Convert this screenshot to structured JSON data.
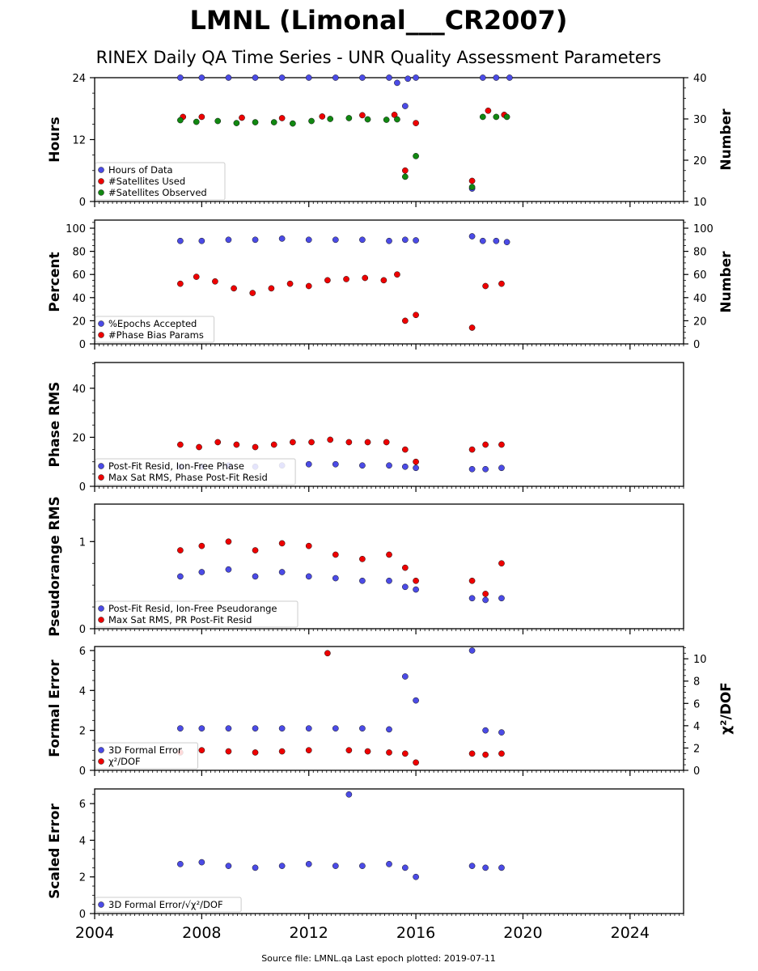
{
  "title": "LMNL (Limonal___CR2007)",
  "subtitle": "RINEX Daily QA Time Series - UNR Quality Assessment Parameters",
  "footer": "Source file: LMNL.qa Last epoch plotted: 2019-07-11",
  "colors": {
    "blue": "#4b4be6",
    "red": "#ee0000",
    "green": "#118811"
  },
  "x_axis": {
    "range": [
      2004,
      2026
    ],
    "ticks": [
      2004,
      2008,
      2012,
      2016,
      2020,
      2024
    ],
    "tick_labels": [
      "2004",
      "2008",
      "2012",
      "2016",
      "2020",
      "2024"
    ]
  },
  "chart_data": [
    {
      "type": "scatter",
      "ylabel": "Hours",
      "ylim": [
        0,
        24
      ],
      "yticks": [
        0,
        12,
        24
      ],
      "y2label": "Number",
      "y2lim": [
        10,
        40
      ],
      "y2ticks": [
        10,
        20,
        30,
        40
      ],
      "legend": "bottom-left",
      "series": [
        {
          "name": "Hours of Data",
          "color": "blue",
          "axis": "left",
          "x": [
            2007.2,
            2008.0,
            2009.0,
            2010.0,
            2011.0,
            2012.0,
            2013.0,
            2014.0,
            2015.0,
            2015.3,
            2015.6,
            2015.7,
            2016.0,
            2018.1,
            2018.5,
            2019.0,
            2019.5
          ],
          "y": [
            24,
            24,
            24,
            24,
            24,
            24,
            24,
            24,
            24,
            23,
            18.5,
            23.8,
            24,
            2.5,
            24,
            24,
            24
          ]
        },
        {
          "name": "#Satellites Used",
          "color": "red",
          "axis": "right",
          "x": [
            2007.3,
            2008.0,
            2009.5,
            2011.0,
            2012.5,
            2014.0,
            2015.2,
            2015.6,
            2016.0,
            2018.1,
            2018.7,
            2019.3
          ],
          "y": [
            30.5,
            30.5,
            30.3,
            30.2,
            30.6,
            30.9,
            31,
            17.5,
            29,
            15,
            32,
            31
          ]
        },
        {
          "name": "#Satellites Observed",
          "color": "green",
          "axis": "right",
          "x": [
            2007.2,
            2007.8,
            2008.6,
            2009.3,
            2010.0,
            2010.7,
            2011.4,
            2012.1,
            2012.8,
            2013.5,
            2014.2,
            2014.9,
            2015.3,
            2015.6,
            2016.0,
            2018.1,
            2018.5,
            2019.0,
            2019.4
          ],
          "y": [
            29.7,
            29.3,
            29.5,
            29.0,
            29.2,
            29.2,
            28.9,
            29.5,
            30.0,
            30.2,
            29.9,
            29.8,
            29.9,
            16,
            21,
            13.5,
            30.5,
            30.5,
            30.5
          ]
        }
      ]
    },
    {
      "type": "scatter",
      "ylabel": "Percent",
      "ylim": [
        0,
        107
      ],
      "yticks": [
        0,
        20,
        40,
        60,
        80,
        100
      ],
      "y2label": "Number",
      "y2lim": [
        0,
        107
      ],
      "y2ticks": [
        0,
        20,
        40,
        60,
        80,
        100
      ],
      "legend": "bottom-left",
      "series": [
        {
          "name": "%Epochs Accepted",
          "color": "blue",
          "axis": "left",
          "x": [
            2007.2,
            2008.0,
            2009.0,
            2010.0,
            2011.0,
            2012.0,
            2013.0,
            2014.0,
            2015.0,
            2015.6,
            2016.0,
            2018.1,
            2018.5,
            2019.0,
            2019.4
          ],
          "y": [
            89,
            89,
            90,
            90,
            91,
            90,
            90,
            90,
            89,
            90,
            89.5,
            93,
            89,
            89,
            88
          ]
        },
        {
          "name": "#Phase Bias Params",
          "color": "red",
          "axis": "right",
          "x": [
            2007.2,
            2007.8,
            2008.5,
            2009.2,
            2009.9,
            2010.6,
            2011.3,
            2012.0,
            2012.7,
            2013.4,
            2014.1,
            2014.8,
            2015.3,
            2015.6,
            2016.0,
            2018.1,
            2018.6,
            2019.2
          ],
          "y": [
            52,
            58,
            54,
            48,
            44,
            48,
            52,
            50,
            55,
            56,
            57,
            55,
            60,
            20,
            25,
            14,
            50,
            52
          ]
        }
      ]
    },
    {
      "type": "scatter",
      "ylabel": "Phase RMS",
      "ylim": [
        0,
        50.5
      ],
      "yticks": [
        0,
        20,
        40
      ],
      "legend": "bottom-left",
      "series": [
        {
          "name": "Post-Fit Resid, Ion-Free Phase",
          "color": "blue",
          "axis": "left",
          "x": [
            2007.2,
            2008.0,
            2009.0,
            2010.0,
            2011.0,
            2012.0,
            2013.0,
            2014.0,
            2015.0,
            2015.6,
            2016.0,
            2018.1,
            2018.6,
            2019.2
          ],
          "y": [
            8,
            8,
            8.5,
            8,
            8.5,
            9,
            9,
            8.5,
            8.5,
            8,
            7.5,
            7,
            7,
            7.5
          ]
        },
        {
          "name": "Max Sat RMS, Phase Post-Fit Resid",
          "color": "red",
          "axis": "left",
          "x": [
            2007.2,
            2007.9,
            2008.6,
            2009.3,
            2010.0,
            2010.7,
            2011.4,
            2012.1,
            2012.8,
            2013.5,
            2014.2,
            2014.9,
            2015.6,
            2016.0,
            2018.1,
            2018.6,
            2019.2
          ],
          "y": [
            17,
            16,
            18,
            17,
            16,
            17,
            18,
            18,
            19,
            18,
            18,
            18,
            15,
            10,
            15,
            17,
            17
          ]
        }
      ]
    },
    {
      "type": "scatter",
      "ylabel": "Pseudorange RMS",
      "ylim": [
        0,
        1.43
      ],
      "yticks": [
        0,
        1
      ],
      "legend": "bottom-left",
      "series": [
        {
          "name": "Post-Fit Resid, Ion-Free Pseudorange",
          "color": "blue",
          "axis": "left",
          "x": [
            2007.2,
            2008.0,
            2009.0,
            2010.0,
            2011.0,
            2012.0,
            2013.0,
            2014.0,
            2015.0,
            2015.6,
            2016.0,
            2018.1,
            2018.6,
            2019.2
          ],
          "y": [
            0.6,
            0.65,
            0.68,
            0.6,
            0.65,
            0.6,
            0.58,
            0.55,
            0.55,
            0.48,
            0.45,
            0.35,
            0.33,
            0.35
          ]
        },
        {
          "name": "Max Sat RMS, PR Post-Fit Resid",
          "color": "red",
          "axis": "left",
          "x": [
            2007.2,
            2008.0,
            2009.0,
            2010.0,
            2011.0,
            2012.0,
            2013.0,
            2014.0,
            2015.0,
            2015.6,
            2016.0,
            2018.1,
            2018.6,
            2019.2
          ],
          "y": [
            0.9,
            0.95,
            1.0,
            0.9,
            0.98,
            0.95,
            0.85,
            0.8,
            0.85,
            0.7,
            0.55,
            0.55,
            0.4,
            0.75
          ]
        }
      ]
    },
    {
      "type": "scatter",
      "ylabel": "Formal Error",
      "ylim": [
        0,
        6.2
      ],
      "yticks": [
        0,
        2,
        4,
        6
      ],
      "y2label": "χ²/DOF",
      "y2lim": [
        0,
        11.1
      ],
      "y2ticks": [
        0,
        2,
        4,
        6,
        8,
        10
      ],
      "legend": "bottom-left",
      "series": [
        {
          "name": "3D Formal Error",
          "color": "blue",
          "axis": "left",
          "x": [
            2007.2,
            2008.0,
            2009.0,
            2010.0,
            2011.0,
            2012.0,
            2013.0,
            2014.0,
            2015.0,
            2015.6,
            2016.0,
            2018.1,
            2018.6,
            2019.2
          ],
          "y": [
            2.1,
            2.1,
            2.1,
            2.1,
            2.1,
            2.1,
            2.1,
            2.1,
            2.05,
            4.7,
            3.5,
            6.0,
            2.0,
            1.9
          ]
        },
        {
          "name": "χ²/DOF",
          "color": "red",
          "axis": "right",
          "x": [
            2007.2,
            2008.0,
            2009.0,
            2010.0,
            2011.0,
            2012.0,
            2012.7,
            2013.5,
            2014.2,
            2015.0,
            2015.6,
            2016.0,
            2018.1,
            2018.6,
            2019.2
          ],
          "y": [
            1.6,
            1.8,
            1.7,
            1.6,
            1.7,
            1.8,
            10.5,
            1.8,
            1.7,
            1.6,
            1.5,
            0.7,
            1.5,
            1.4,
            1.5
          ]
        }
      ]
    },
    {
      "type": "scatter",
      "ylabel": "Scaled Error",
      "ylim": [
        0,
        6.8
      ],
      "yticks": [
        0,
        2,
        4,
        6
      ],
      "legend": "bottom-left",
      "series": [
        {
          "name": "3D Formal Error/√χ²/DOF",
          "color": "blue",
          "axis": "left",
          "x": [
            2007.2,
            2008.0,
            2009.0,
            2010.0,
            2011.0,
            2012.0,
            2013.0,
            2013.5,
            2014.0,
            2015.0,
            2015.6,
            2016.0,
            2018.1,
            2018.6,
            2019.2
          ],
          "y": [
            2.7,
            2.8,
            2.6,
            2.5,
            2.6,
            2.7,
            2.6,
            6.5,
            2.6,
            2.7,
            2.5,
            2.0,
            2.6,
            2.5,
            2.5
          ]
        }
      ]
    }
  ]
}
